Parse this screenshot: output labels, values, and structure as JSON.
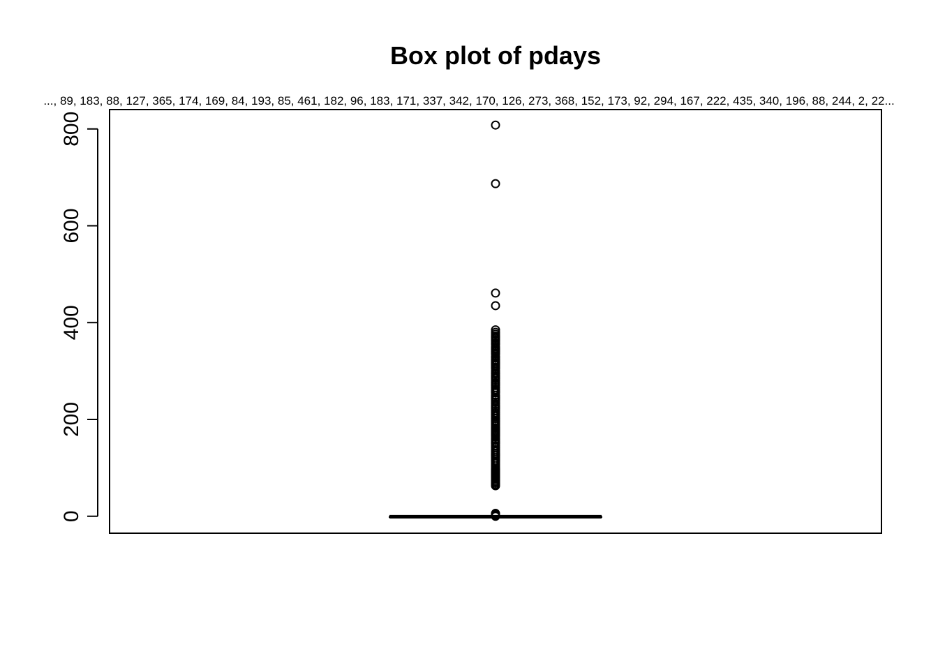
{
  "chart_data": {
    "type": "box",
    "title": "Box plot of pdays",
    "subtitle": "..., 89, 183, 88, 127, 365, 174, 169, 84, 193, 85, 461, 182, 96, 183, 171, 337, 342, 170, 126, 273, 368, 152, 173, 92, 294, 167, 222, 435, 340, 196, 88, 244, 2, 22...",
    "ylim": [
      -35,
      840
    ],
    "yticks": [
      0,
      200,
      400,
      600,
      800
    ],
    "grid": false,
    "box": {
      "min": -1,
      "q1": -1,
      "median": -1,
      "q3": -1,
      "max": -1
    },
    "outliers": [
      808,
      687,
      461,
      435,
      385,
      380,
      376,
      372,
      370,
      368,
      365,
      362,
      358,
      355,
      350,
      347,
      345,
      342,
      340,
      337,
      335,
      330,
      327,
      323,
      320,
      317,
      315,
      312,
      308,
      305,
      300,
      296,
      294,
      290,
      287,
      284,
      280,
      276,
      273,
      270,
      266,
      262,
      258,
      255,
      250,
      246,
      244,
      240,
      236,
      232,
      228,
      225,
      222,
      218,
      214,
      210,
      206,
      202,
      198,
      196,
      193,
      190,
      187,
      183,
      182,
      179,
      176,
      174,
      171,
      170,
      169,
      167,
      164,
      160,
      157,
      153,
      152,
      150,
      146,
      142,
      138,
      134,
      130,
      127,
      126,
      122,
      118,
      114,
      110,
      106,
      102,
      98,
      96,
      94,
      92,
      90,
      89,
      88,
      85,
      84,
      82,
      80,
      77,
      74,
      71,
      68,
      65,
      63,
      6,
      4,
      2,
      1,
      0
    ]
  }
}
